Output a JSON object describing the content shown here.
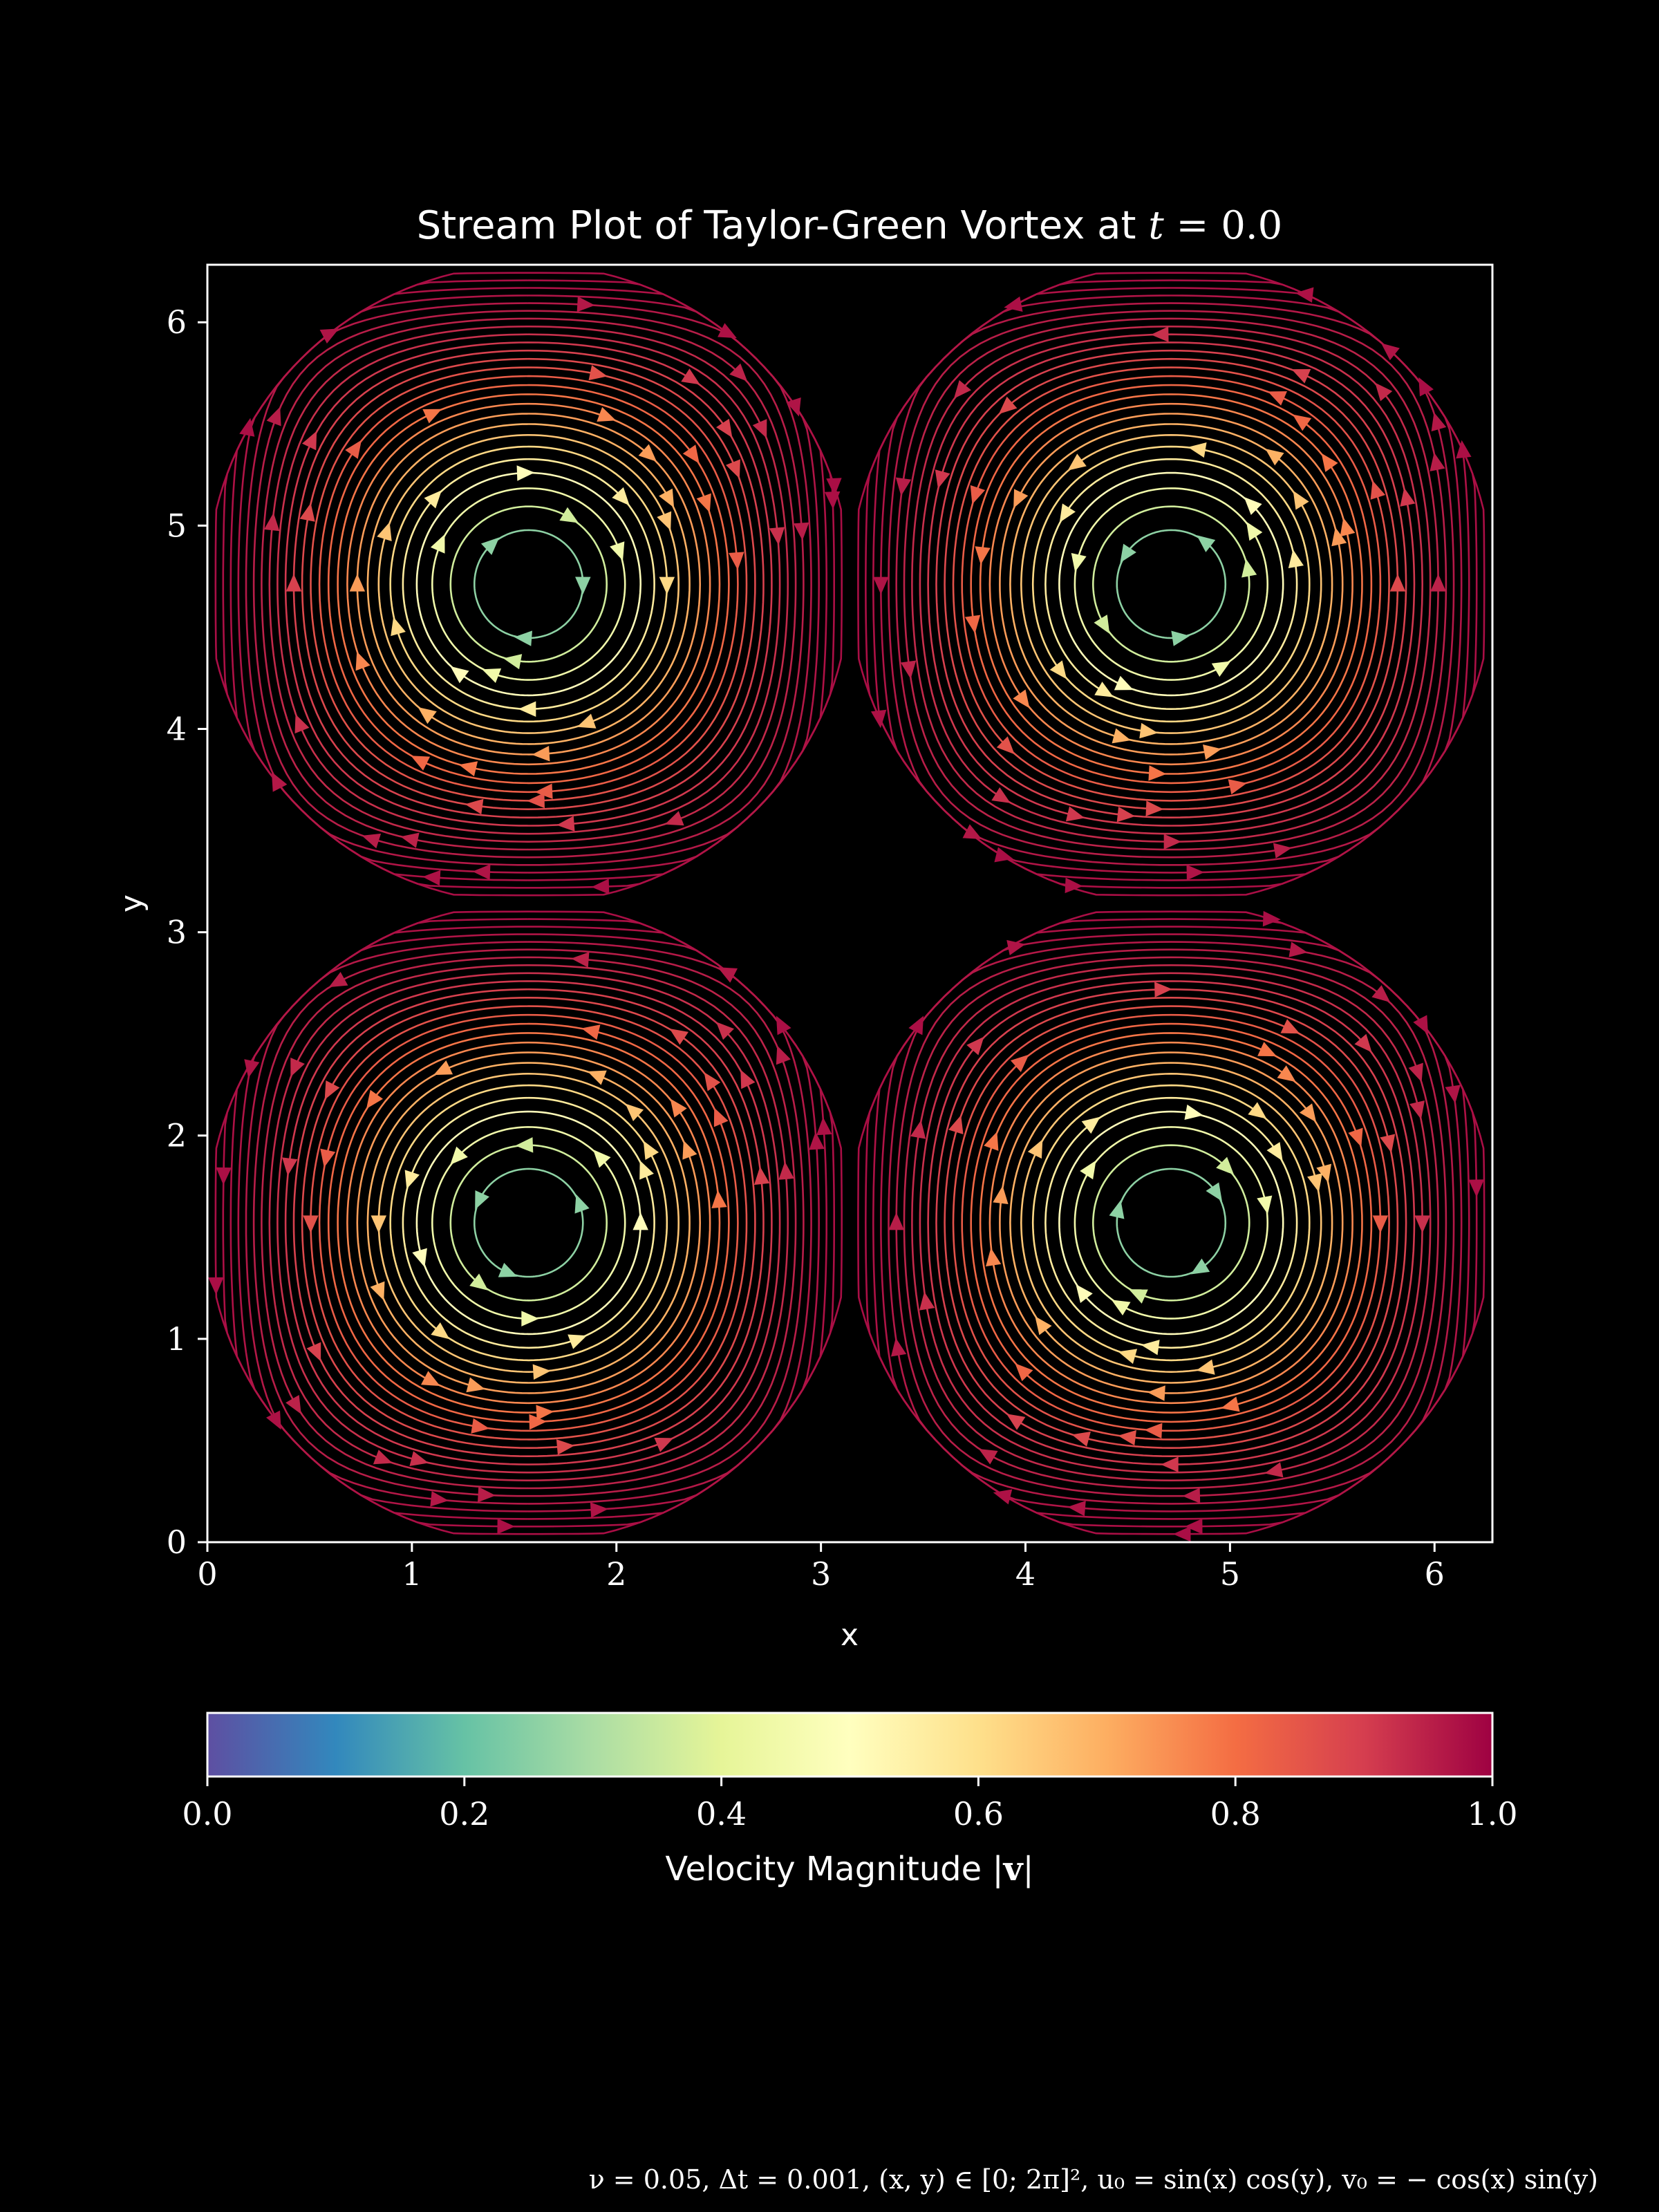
{
  "chart_data": [
    {
      "type": "streamplot",
      "title_text": "Stream Plot of Taylor-Green Vortex at ",
      "title_math_var": "t",
      "title_math_eq": " = 0.0",
      "xlabel": "x",
      "ylabel": "y",
      "xlim": [
        0,
        6.283
      ],
      "ylim": [
        0,
        6.283
      ],
      "xticks": [
        0,
        1,
        2,
        3,
        4,
        5,
        6
      ],
      "yticks": [
        0,
        1,
        2,
        3,
        4,
        5,
        6
      ],
      "tick_labels": [
        "0",
        "1",
        "2",
        "3",
        "4",
        "5",
        "6"
      ],
      "field": {
        "u": "sin(x) cos(y)",
        "v": "-cos(x) sin(y)"
      },
      "vortex_centers": [
        [
          1.571,
          4.712
        ],
        [
          4.712,
          4.712
        ],
        [
          1.571,
          1.571
        ],
        [
          4.712,
          1.571
        ]
      ],
      "colormap": "Spectral_r",
      "grid": false
    },
    {
      "type": "colorbar",
      "label_text": "Velocity Magnitude |",
      "label_vec": "v",
      "label_end": "|",
      "range": [
        0.0,
        1.0
      ],
      "ticks": [
        0.0,
        0.2,
        0.4,
        0.6,
        0.8,
        1.0
      ],
      "tick_labels": [
        "0.0",
        "0.2",
        "0.4",
        "0.6",
        "0.8",
        "1.0"
      ],
      "colors": [
        "#5e4fa2",
        "#3288bd",
        "#66c2a5",
        "#abdda4",
        "#e6f598",
        "#ffffbf",
        "#fee08b",
        "#fdae61",
        "#f46d43",
        "#d53e4f",
        "#9e0142"
      ]
    }
  ],
  "footer_note": "ν = 0.05, Δt = 0.001, (x, y) ∈ [0; 2π]², u₀ = sin(x) cos(y), v₀ = − cos(x) sin(y)"
}
